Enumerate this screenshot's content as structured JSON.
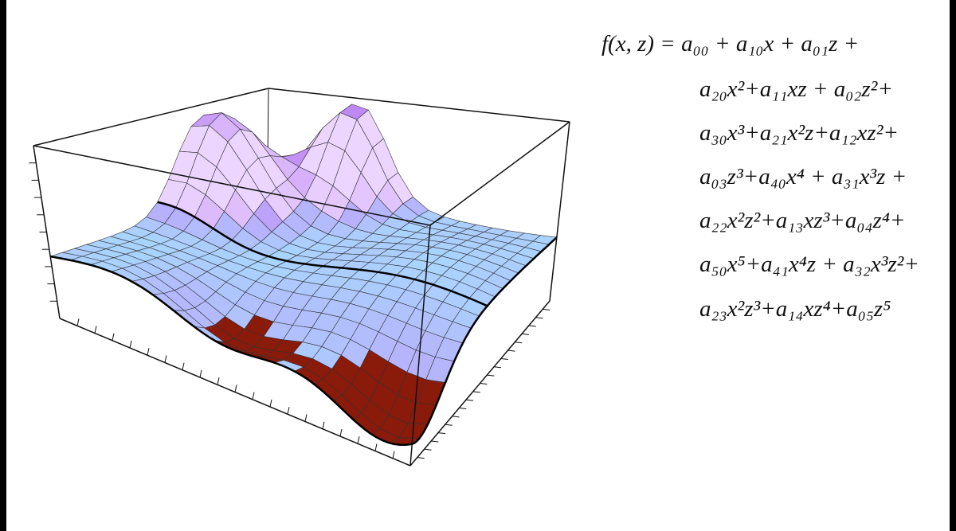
{
  "equation": {
    "lines": [
      "f(x, z) = a₀₀ + a₁₀x + a₀₁z +",
      "a₂₀x²+a₁₁xz + a₀₂z²+",
      "a₃₀x³+a₂₁x²z+a₁₂xz²+",
      "a₀₃z³+a₄₀x⁴ + a₃₁x³z +",
      "a₂₂x²z²+a₁₃xz³+a₀₄z⁴+",
      "a₅₀x⁵+a₄₁x⁴z + a₃₂x³z²+",
      "a₂₃x²z³+a₁₄xz⁴+a₀₅z⁵"
    ]
  }
}
